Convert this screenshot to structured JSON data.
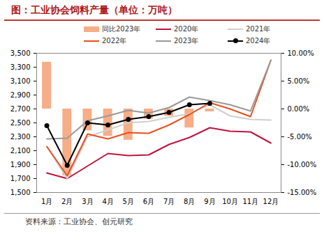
{
  "chart_data": {
    "type": "line",
    "title": "图：工业协会饲料产量（单位：万吨）",
    "source": "资料来源：工业协会、创元研究",
    "categories": [
      "1月",
      "2月",
      "3月",
      "4月",
      "5月",
      "6月",
      "7月",
      "8月",
      "9月",
      "10月",
      "11月",
      "12月"
    ],
    "series": [
      {
        "name": "同比2023年",
        "type": "bar",
        "axis": "y2",
        "color": "#f7ad86",
        "values": [
          8.4,
          -12.0,
          -3.9,
          -4.9,
          -5.6,
          -1.8,
          -1.3,
          -3.4,
          -0.5,
          null,
          null,
          null
        ]
      },
      {
        "name": "2020年",
        "color": "#c0143c",
        "values": [
          1780,
          1700,
          1880,
          2060,
          2030,
          2040,
          2190,
          2290,
          2430,
          2380,
          2370,
          2210
        ]
      },
      {
        "name": "2021年",
        "color": "#cfcfcf",
        "values": [
          2160,
          1700,
          2300,
          2400,
          2500,
          2520,
          2580,
          2630,
          2760,
          2600,
          2550,
          2540
        ]
      },
      {
        "name": "2022年",
        "color": "#e8501e",
        "values": [
          2160,
          1740,
          2340,
          2270,
          2360,
          2350,
          2470,
          2620,
          2790,
          2700,
          2590,
          3400
        ]
      },
      {
        "name": "2023年",
        "color": "#999999",
        "values": [
          2270,
          2280,
          2530,
          2600,
          2680,
          2640,
          2720,
          2870,
          2820,
          2760,
          2670,
          3400
        ]
      },
      {
        "name": "2024年",
        "color": "#000000",
        "marker": "circle",
        "values": [
          2460,
          1890,
          2500,
          2470,
          2550,
          2590,
          2650,
          2760,
          2780,
          null,
          null,
          null
        ]
      }
    ],
    "ylim": [
      1500,
      3500
    ],
    "yticks": [
      {
        "value": 1500,
        "label": "1,500"
      },
      {
        "value": 1700,
        "label": "1,700"
      },
      {
        "value": 1900,
        "label": "1,900"
      },
      {
        "value": 2100,
        "label": "2,100"
      },
      {
        "value": 2300,
        "label": "2,300"
      },
      {
        "value": 2500,
        "label": "2,500"
      },
      {
        "value": 2700,
        "label": "2,700"
      },
      {
        "value": 2900,
        "label": "2,900"
      },
      {
        "value": 3100,
        "label": "3,100"
      },
      {
        "value": 3300,
        "label": "3,300"
      },
      {
        "value": 3500,
        "label": "3,500"
      }
    ],
    "y2lim": [
      -15,
      10
    ],
    "y2ticks": [
      {
        "value": -15,
        "label": "-15.00%"
      },
      {
        "value": -10,
        "label": "-10.00%"
      },
      {
        "value": -5,
        "label": "-5.00%"
      },
      {
        "value": 0,
        "label": "0.00%"
      },
      {
        "value": 5,
        "label": "5.00%"
      },
      {
        "value": 10,
        "label": "10.00%"
      }
    ],
    "legend": "top"
  }
}
